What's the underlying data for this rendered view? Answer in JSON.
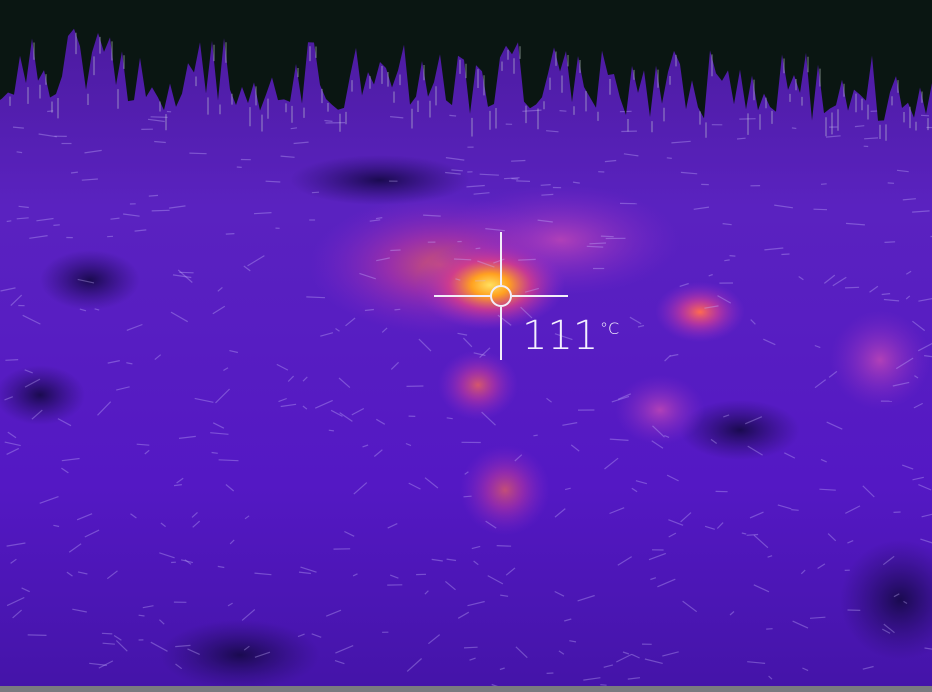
{
  "reading": {
    "value": 111,
    "unit": "°C"
  }
}
